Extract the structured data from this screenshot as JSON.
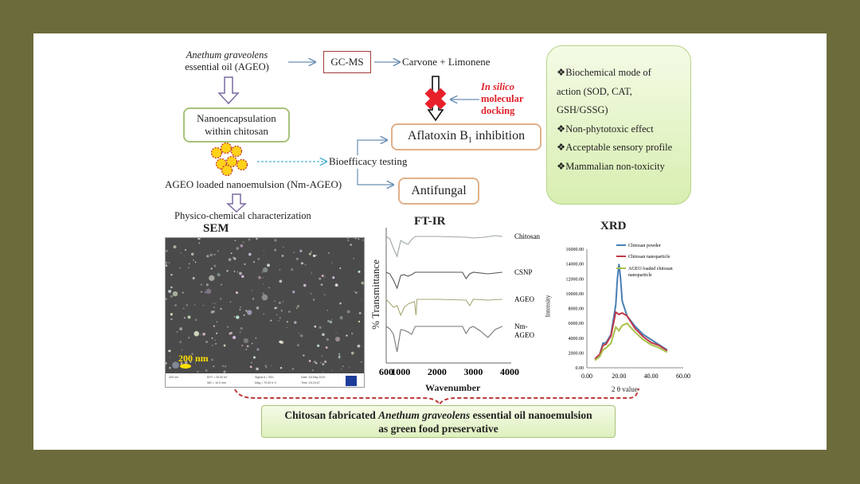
{
  "flow": {
    "source_italic": "Anethum graveolens",
    "source_rest": "essential oil (AGEO)",
    "gcms": "GC-MS",
    "compounds": "Carvone + Limonene",
    "insilico": [
      "In silico",
      "molecular",
      "docking"
    ],
    "nanoencapsulation": [
      "Nanoencapsulation",
      "within chitosan"
    ],
    "nanoemulsion": "AGEO loaded nanoemulsion (Nm-AGEO)",
    "bioefficacy": "Bioefficacy testing",
    "aflatoxin": "Aflatoxin B",
    "aflatoxin_sub": "1",
    "aflatoxin_rest": " inhibition",
    "antifungal": "Antifungal",
    "characterization": "Physico-chemical characterization"
  },
  "features": [
    "❖Biochemical mode of",
    "action (SOD, CAT,",
    "GSH/GSSG)",
    "❖Non-phytotoxic effect",
    "❖Acceptable sensory profile",
    "❖Mammalian non-toxicity"
  ],
  "sem": {
    "title": "SEM",
    "scale": "200 nm",
    "info": [
      "200 nm",
      "EHT = 20.00 kV",
      "WD = 10.0 mm",
      "Signal A = SE1",
      "Mag = 70.00 K X",
      "Date :18 May 2019",
      "Time :15:24:07"
    ]
  },
  "colors": {
    "background": "#6c6b3b",
    "red": "#e0202a",
    "green_box": "#e8f6c8",
    "green_border": "#9bbd6a",
    "orange_border": "#e0a874",
    "gcms_border": "#a23a3a"
  },
  "conclusion": {
    "pre": "Chitosan fabricated ",
    "italic": "Anethum graveolens",
    "post": " essential oil nanoemulsion",
    "line2": "as green food preservative"
  },
  "chart_data": [
    {
      "type": "line",
      "title": "FT-IR",
      "xlabel": "Wavenumber",
      "ylabel": "% Transmittance",
      "xlim": [
        600,
        4000
      ],
      "xticks": [
        "600",
        "1000",
        "2000",
        "3000",
        "4000"
      ],
      "series": [
        {
          "name": "Chitosan",
          "x": [
            600,
            700,
            800,
            900,
            1000,
            1100,
            1200,
            1300,
            1400,
            2000,
            2800,
            3000,
            3300,
            3600,
            3800
          ],
          "y": [
            0,
            -3,
            -15,
            -25,
            -5,
            -8,
            -10,
            -4,
            0,
            0,
            -1,
            -2,
            -1,
            1,
            0
          ]
        },
        {
          "name": "CSNP",
          "x": [
            600,
            700,
            800,
            900,
            1000,
            1100,
            1200,
            1300,
            1400,
            2000,
            2700,
            2800,
            2900,
            3000,
            3400,
            3800
          ],
          "y": [
            0,
            -2,
            -10,
            -20,
            -4,
            -3,
            -5,
            -3,
            0,
            0,
            0,
            -8,
            -2,
            0,
            -2,
            0
          ]
        },
        {
          "name": "AGEO",
          "x": [
            600,
            700,
            800,
            900,
            1000,
            1100,
            1200,
            1300,
            1380,
            1420,
            1450,
            2000,
            2800,
            2900,
            3000,
            3400,
            3800
          ],
          "y": [
            0,
            -5,
            -10,
            -8,
            -20,
            -10,
            -6,
            -4,
            -3,
            -20,
            0,
            0,
            -1,
            -8,
            0,
            -1,
            0
          ]
        },
        {
          "name": "Nm-AGEO",
          "x": [
            600,
            700,
            800,
            900,
            1000,
            1100,
            1200,
            1300,
            1400,
            2000,
            2700,
            2800,
            2900,
            3000,
            3200,
            3400,
            3600,
            3800
          ],
          "y": [
            0,
            -3,
            -10,
            -32,
            -4,
            -5,
            -7,
            -10,
            0,
            0,
            0,
            -9,
            -2,
            0,
            -6,
            -14,
            -4,
            0
          ]
        }
      ]
    },
    {
      "type": "line",
      "title": "XRD",
      "xlabel": "2 θ value",
      "ylabel": "Intensity",
      "xlim": [
        0,
        60
      ],
      "ylim": [
        0,
        16000
      ],
      "xticks": [
        "0.00",
        "20.00",
        "40.00",
        "60.00"
      ],
      "yticks": [
        "0.00",
        "2000.00",
        "4000.00",
        "6000.00",
        "8000.00",
        "10000.00",
        "12000.00",
        "14000.00",
        "16000.00"
      ],
      "legend": "top-right",
      "series": [
        {
          "name": "Chitosan powder",
          "color": "#4a7fb5",
          "x": [
            5,
            8,
            10,
            12,
            15,
            18,
            19,
            20,
            21,
            22,
            25,
            30,
            35,
            40,
            45,
            50
          ],
          "y": [
            1200,
            1800,
            3300,
            3400,
            4500,
            8500,
            12000,
            14000,
            12000,
            9000,
            7000,
            5600,
            4500,
            3800,
            3100,
            2400
          ]
        },
        {
          "name": "Chitosan nanoparticle",
          "color": "#c0394a",
          "x": [
            5,
            8,
            10,
            12,
            15,
            18,
            20,
            22,
            25,
            30,
            35,
            40,
            45,
            50
          ],
          "y": [
            1200,
            1800,
            3000,
            3200,
            4300,
            7500,
            7200,
            7400,
            7000,
            5300,
            4200,
            3400,
            3000,
            2300
          ]
        },
        {
          "name": "AGEO loaded chitosan nanoparticle",
          "color": "#a8c24a",
          "x": [
            5,
            8,
            10,
            12,
            15,
            18,
            20,
            22,
            25,
            30,
            35,
            40,
            45,
            50
          ],
          "y": [
            1000,
            1500,
            2400,
            2700,
            3300,
            5500,
            5000,
            5700,
            6000,
            4800,
            3800,
            3100,
            2700,
            2100
          ]
        }
      ]
    }
  ]
}
